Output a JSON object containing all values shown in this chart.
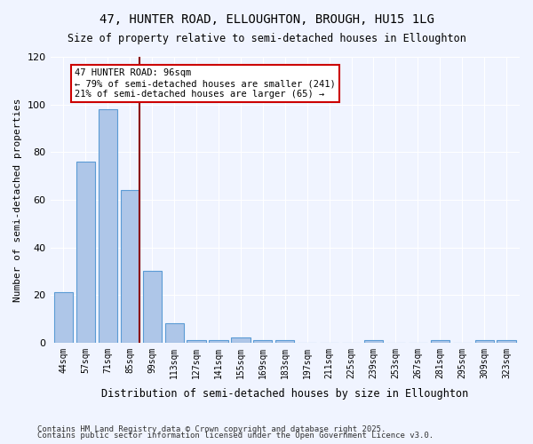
{
  "title1": "47, HUNTER ROAD, ELLOUGHTON, BROUGH, HU15 1LG",
  "title2": "Size of property relative to semi-detached houses in Elloughton",
  "xlabel": "Distribution of semi-detached houses by size in Elloughton",
  "ylabel": "Number of semi-detached properties",
  "categories": [
    "44sqm",
    "57sqm",
    "71sqm",
    "85sqm",
    "99sqm",
    "113sqm",
    "127sqm",
    "141sqm",
    "155sqm",
    "169sqm",
    "183sqm",
    "197sqm",
    "211sqm",
    "225sqm",
    "239sqm",
    "253sqm",
    "267sqm",
    "281sqm",
    "295sqm",
    "309sqm",
    "323sqm"
  ],
  "values": [
    21,
    76,
    98,
    64,
    30,
    8,
    1,
    1,
    2,
    1,
    1,
    0,
    0,
    0,
    1,
    0,
    0,
    1,
    0,
    1,
    1
  ],
  "bar_color": "#aec6e8",
  "bar_edge_color": "#5b9bd5",
  "vline_x": 4,
  "vline_color": "#8b0000",
  "annotation_text": "47 HUNTER ROAD: 96sqm\n← 79% of semi-detached houses are smaller (241)\n21% of semi-detached houses are larger (65) →",
  "annotation_box_color": "#ffffff",
  "annotation_box_edge": "#cc0000",
  "ylim": [
    0,
    120
  ],
  "yticks": [
    0,
    20,
    40,
    60,
    80,
    100,
    120
  ],
  "footer1": "Contains HM Land Registry data © Crown copyright and database right 2025.",
  "footer2": "Contains public sector information licensed under the Open Government Licence v3.0.",
  "bg_color": "#f0f4ff",
  "plot_bg_color": "#f0f4ff"
}
